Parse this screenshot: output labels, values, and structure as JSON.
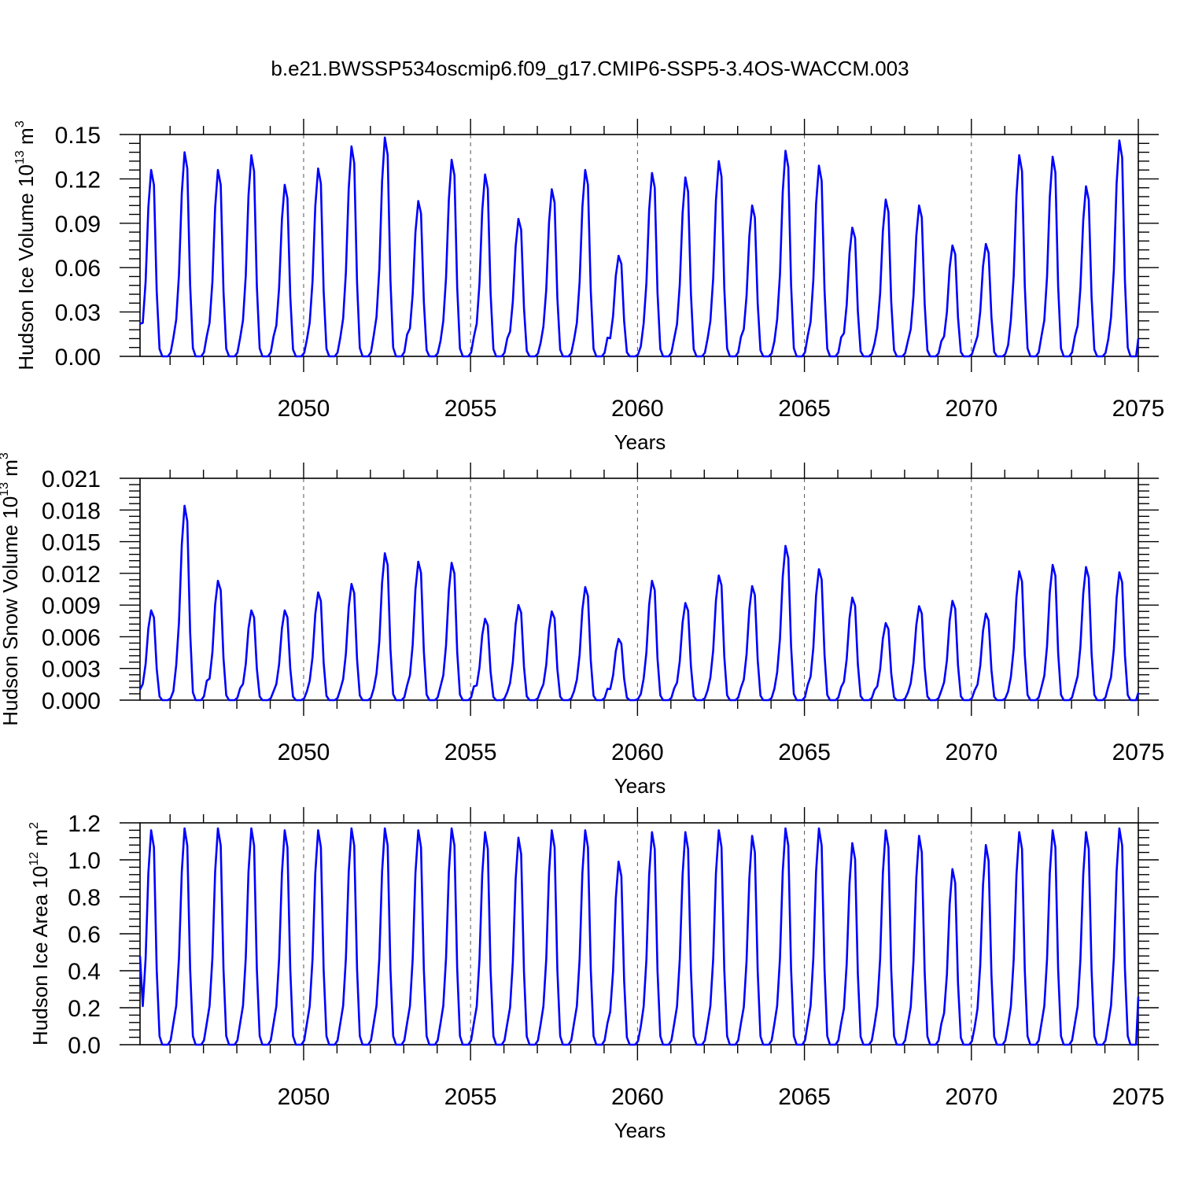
{
  "title": "b.e21.BWSSP534oscmip6.f09_g17.CMIP6-SSP5-3.4OS-WACCM.003",
  "line_color": "#0000ff",
  "chart_data": [
    {
      "type": "line",
      "ylabel": "Hudson Ice Volume 10",
      "ylabel_exp": "13",
      "ylabel_unit": " m",
      "ylabel_unit_exp": "3",
      "xlabel": "Years",
      "xlim": [
        2045.1,
        2075.0
      ],
      "ylim": [
        0.0,
        0.15
      ],
      "xticks": [
        2050,
        2055,
        2060,
        2065,
        2070,
        2075
      ],
      "xtick_labels": [
        "2050",
        "2055",
        "2060",
        "2065",
        "2070",
        "2075"
      ],
      "yticks": [
        0.0,
        0.03,
        0.06,
        0.09,
        0.12,
        0.15
      ],
      "ytick_labels": [
        "0.00",
        "0.03",
        "0.06",
        "0.09",
        "0.12",
        "0.15"
      ],
      "grid_x": "dashed vertical at major ticks",
      "start_value": 0.022,
      "end_value": 0.012,
      "annual_peaks": [
        0.126,
        0.138,
        0.126,
        0.136,
        0.116,
        0.127,
        0.142,
        0.148,
        0.105,
        0.133,
        0.123,
        0.093,
        0.113,
        0.126,
        0.068,
        0.124,
        0.121,
        0.132,
        0.102,
        0.139,
        0.129,
        0.087,
        0.106,
        0.102,
        0.075,
        0.076,
        0.136,
        0.135,
        0.115,
        0.146
      ],
      "series": [
        {
          "name": "Hudson Ice Volume",
          "color": "#0000ff"
        }
      ]
    },
    {
      "type": "line",
      "ylabel": "Hudson Snow Volume 10",
      "ylabel_exp": "13",
      "ylabel_unit": " m",
      "ylabel_unit_exp": "3",
      "xlabel": "Years",
      "xlim": [
        2045.1,
        2075.0
      ],
      "ylim": [
        0.0,
        0.021
      ],
      "xticks": [
        2050,
        2055,
        2060,
        2065,
        2070,
        2075
      ],
      "xtick_labels": [
        "2050",
        "2055",
        "2060",
        "2065",
        "2070",
        "2075"
      ],
      "yticks": [
        0.0,
        0.003,
        0.006,
        0.009,
        0.012,
        0.015,
        0.018,
        0.021
      ],
      "ytick_labels": [
        "0.000",
        "0.003",
        "0.006",
        "0.009",
        "0.012",
        "0.015",
        "0.018",
        "0.021"
      ],
      "grid_x": "dashed vertical at major ticks",
      "start_value": 0.001,
      "end_value": 0.0007,
      "annual_peaks": [
        0.0085,
        0.0184,
        0.0113,
        0.0085,
        0.0085,
        0.0102,
        0.011,
        0.0139,
        0.0131,
        0.013,
        0.0077,
        0.009,
        0.0084,
        0.0107,
        0.0058,
        0.0113,
        0.0092,
        0.0118,
        0.0108,
        0.0146,
        0.0124,
        0.0097,
        0.0073,
        0.0089,
        0.0094,
        0.0082,
        0.0122,
        0.0128,
        0.0126,
        0.0121
      ],
      "series": [
        {
          "name": "Hudson Snow Volume",
          "color": "#0000ff"
        }
      ]
    },
    {
      "type": "line",
      "ylabel": "Hudson Ice Area 10",
      "ylabel_exp": "12",
      "ylabel_unit": " m",
      "ylabel_unit_exp": "2",
      "xlabel": "Years",
      "xlim": [
        2045.1,
        2075.0
      ],
      "ylim": [
        0.0,
        1.2
      ],
      "xticks": [
        2050,
        2055,
        2060,
        2065,
        2070,
        2075
      ],
      "xtick_labels": [
        "2050",
        "2055",
        "2060",
        "2065",
        "2070",
        "2075"
      ],
      "yticks": [
        0.0,
        0.2,
        0.4,
        0.6,
        0.8,
        1.0,
        1.2
      ],
      "ytick_labels": [
        "0.0",
        "0.2",
        "0.4",
        "0.6",
        "0.8",
        "1.0",
        "1.2"
      ],
      "grid_x": "dashed vertical at major ticks",
      "start_value": 0.48,
      "end_value": 0.26,
      "annual_peaks": [
        1.16,
        1.17,
        1.17,
        1.17,
        1.16,
        1.16,
        1.17,
        1.17,
        1.16,
        1.17,
        1.15,
        1.12,
        1.16,
        1.16,
        0.99,
        1.15,
        1.15,
        1.16,
        1.13,
        1.17,
        1.17,
        1.09,
        1.16,
        1.13,
        0.95,
        1.08,
        1.15,
        1.16,
        1.15,
        1.17
      ],
      "series": [
        {
          "name": "Hudson Ice Area",
          "color": "#0000ff"
        }
      ]
    }
  ]
}
